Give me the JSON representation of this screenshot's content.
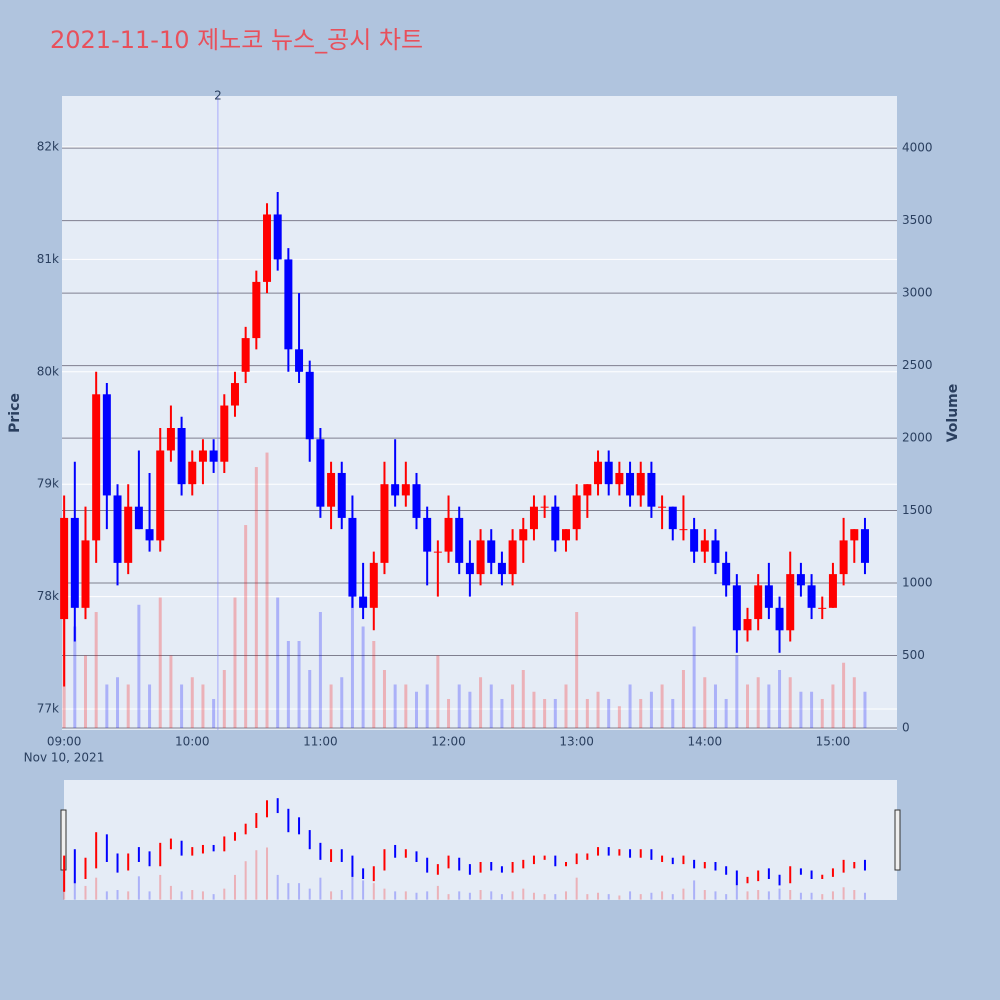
{
  "chart_data": {
    "type": "candlestick",
    "title": "2021-11-10 제노코 뉴스_공시 차트",
    "x": [
      "2021-11-10 09:00",
      "2021-11-10 09:05",
      "2021-11-10 09:10",
      "2021-11-10 09:15",
      "2021-11-10 09:20",
      "2021-11-10 09:25",
      "2021-11-10 09:30",
      "2021-11-10 09:35",
      "2021-11-10 09:40",
      "2021-11-10 09:45",
      "2021-11-10 09:50",
      "2021-11-10 09:55",
      "2021-11-10 10:00",
      "2021-11-10 10:05",
      "2021-11-10 10:10",
      "2021-11-10 10:15",
      "2021-11-10 10:20",
      "2021-11-10 10:25",
      "2021-11-10 10:30",
      "2021-11-10 10:35",
      "2021-11-10 10:40",
      "2021-11-10 10:45",
      "2021-11-10 10:50",
      "2021-11-10 10:55",
      "2021-11-10 11:00",
      "2021-11-10 11:05",
      "2021-11-10 11:10",
      "2021-11-10 11:15",
      "2021-11-10 11:20",
      "2021-11-10 11:25",
      "2021-11-10 11:30",
      "2021-11-10 11:35",
      "2021-11-10 11:40",
      "2021-11-10 11:45",
      "2021-11-10 11:50",
      "2021-11-10 11:55",
      "2021-11-10 12:00",
      "2021-11-10 12:05",
      "2021-11-10 12:10",
      "2021-11-10 12:15",
      "2021-11-10 12:20",
      "2021-11-10 12:25",
      "2021-11-10 12:30",
      "2021-11-10 12:35",
      "2021-11-10 12:40",
      "2021-11-10 12:45",
      "2021-11-10 12:50",
      "2021-11-10 12:55",
      "2021-11-10 13:00",
      "2021-11-10 13:05",
      "2021-11-10 13:10",
      "2021-11-10 13:15",
      "2021-11-10 13:20",
      "2021-11-10 13:25",
      "2021-11-10 13:30",
      "2021-11-10 13:35",
      "2021-11-10 13:40",
      "2021-11-10 13:45",
      "2021-11-10 13:50",
      "2021-11-10 13:55",
      "2021-11-10 14:00",
      "2021-11-10 14:05",
      "2021-11-10 14:10",
      "2021-11-10 14:15",
      "2021-11-10 14:20",
      "2021-11-10 14:25",
      "2021-11-10 14:30",
      "2021-11-10 14:35",
      "2021-11-10 14:40",
      "2021-11-10 14:45",
      "2021-11-10 14:50",
      "2021-11-10 14:55",
      "2021-11-10 15:00",
      "2021-11-10 15:05",
      "2021-11-10 15:10",
      "2021-11-10 15:15"
    ],
    "open": [
      77800,
      78700,
      77900,
      78500,
      79800,
      78900,
      78300,
      78800,
      78600,
      78500,
      79300,
      79500,
      79000,
      79200,
      79300,
      79200,
      79700,
      80000,
      80300,
      80800,
      81400,
      81000,
      80200,
      80000,
      79400,
      78800,
      79100,
      78700,
      78000,
      77900,
      78300,
      79000,
      78900,
      79000,
      78700,
      78400,
      78400,
      78700,
      78300,
      78200,
      78500,
      78300,
      78200,
      78500,
      78600,
      78800,
      78800,
      78500,
      78600,
      78900,
      79000,
      79200,
      79000,
      79100,
      78900,
      79100,
      78800,
      78800,
      78600,
      78600,
      78400,
      78500,
      78300,
      78100,
      77700,
      77800,
      78100,
      77900,
      77700,
      78200,
      78100,
      77900,
      77900,
      78200,
      78500,
      78600
    ],
    "high": [
      78900,
      79200,
      78800,
      80000,
      79900,
      79000,
      79000,
      79300,
      79100,
      79500,
      79700,
      79600,
      79300,
      79400,
      79400,
      79800,
      80000,
      80400,
      80900,
      81500,
      81600,
      81100,
      80700,
      80100,
      79500,
      79200,
      79200,
      78900,
      78300,
      78400,
      79200,
      79400,
      79200,
      79100,
      78800,
      78500,
      78900,
      78800,
      78500,
      78600,
      78600,
      78400,
      78600,
      78700,
      78900,
      78900,
      78900,
      78600,
      79000,
      79000,
      79300,
      79300,
      79200,
      79200,
      79200,
      79200,
      78900,
      78800,
      78900,
      78700,
      78600,
      78600,
      78400,
      78200,
      77900,
      78200,
      78300,
      78000,
      78400,
      78300,
      78200,
      78000,
      78300,
      78700,
      78600,
      78700
    ],
    "low": [
      77200,
      77600,
      77800,
      78300,
      78600,
      78100,
      78200,
      78600,
      78400,
      78400,
      79200,
      78900,
      78900,
      79000,
      79100,
      79100,
      79600,
      79900,
      80200,
      80700,
      80900,
      80000,
      79900,
      79200,
      78700,
      78600,
      78600,
      77900,
      77800,
      77700,
      78200,
      78800,
      78800,
      78600,
      78100,
      78000,
      78300,
      78200,
      78000,
      78100,
      78200,
      78100,
      78100,
      78300,
      78500,
      78700,
      78400,
      78400,
      78500,
      78700,
      78900,
      78900,
      78900,
      78800,
      78800,
      78700,
      78600,
      78500,
      78500,
      78300,
      78300,
      78200,
      78000,
      77500,
      77600,
      77700,
      77800,
      77500,
      77600,
      78000,
      77800,
      77800,
      77900,
      78100,
      78300,
      78200
    ],
    "close": [
      78700,
      77900,
      78500,
      79800,
      78900,
      78300,
      78800,
      78600,
      78500,
      79300,
      79500,
      79000,
      79200,
      79300,
      79200,
      79700,
      79900,
      80300,
      80800,
      81400,
      81000,
      80200,
      80000,
      79400,
      78800,
      79100,
      78700,
      78000,
      77900,
      78300,
      79000,
      78900,
      79000,
      78700,
      78400,
      78400,
      78700,
      78300,
      78200,
      78500,
      78300,
      78200,
      78500,
      78600,
      78800,
      78800,
      78500,
      78600,
      78900,
      79000,
      79200,
      79000,
      79100,
      78900,
      79100,
      78800,
      78800,
      78600,
      78600,
      78400,
      78500,
      78300,
      78100,
      77700,
      77800,
      78100,
      77900,
      77700,
      78200,
      78100,
      77900,
      77900,
      78200,
      78500,
      78600,
      78300
    ],
    "volume": [
      900,
      700,
      500,
      800,
      300,
      350,
      300,
      850,
      300,
      900,
      500,
      300,
      350,
      300,
      200,
      400,
      900,
      1400,
      1800,
      1900,
      900,
      600,
      600,
      400,
      800,
      300,
      350,
      1000,
      700,
      600,
      400,
      300,
      300,
      250,
      300,
      500,
      200,
      300,
      250,
      350,
      300,
      200,
      300,
      400,
      250,
      200,
      200,
      300,
      800,
      200,
      250,
      200,
      150,
      300,
      200,
      250,
      300,
      200,
      400,
      700,
      350,
      300,
      200,
      500,
      300,
      350,
      300,
      400,
      350,
      250,
      250,
      200,
      300,
      450,
      350,
      250
    ],
    "increasing_color": "#ff0000",
    "decreasing_color": "#0000ff",
    "xlim": [
      "2021-11-10 08:59",
      "2021-11-10 15:30"
    ],
    "xticks": [
      {
        "value": "2021-11-10 09:00",
        "label": "09:00"
      },
      {
        "value": "2021-11-10 10:00",
        "label": "10:00"
      },
      {
        "value": "2021-11-10 11:00",
        "label": "11:00"
      },
      {
        "value": "2021-11-10 12:00",
        "label": "12:00"
      },
      {
        "value": "2021-11-10 13:00",
        "label": "13:00"
      },
      {
        "value": "2021-11-10 14:00",
        "label": "14:00"
      },
      {
        "value": "2021-11-10 15:00",
        "label": "15:00"
      }
    ],
    "x_date_label": "Nov 10, 2021",
    "ylabel": "Price",
    "ylim": [
      76813,
      82454
    ],
    "yticks": [
      {
        "value": 77000,
        "label": "77k"
      },
      {
        "value": 78000,
        "label": "78k"
      },
      {
        "value": 79000,
        "label": "79k"
      },
      {
        "value": 80000,
        "label": "80k"
      },
      {
        "value": 81000,
        "label": "81k"
      },
      {
        "value": 82000,
        "label": "82k"
      }
    ],
    "y2label": "Volume",
    "y2lim": [
      -14,
      4360
    ],
    "y2ticks": [
      0,
      500,
      1000,
      1500,
      2000,
      2500,
      3000,
      3500,
      4000
    ],
    "annotations": [
      {
        "x": "2021-11-10 10:12",
        "text": "2"
      }
    ],
    "grid": true,
    "rangeslider": true
  }
}
